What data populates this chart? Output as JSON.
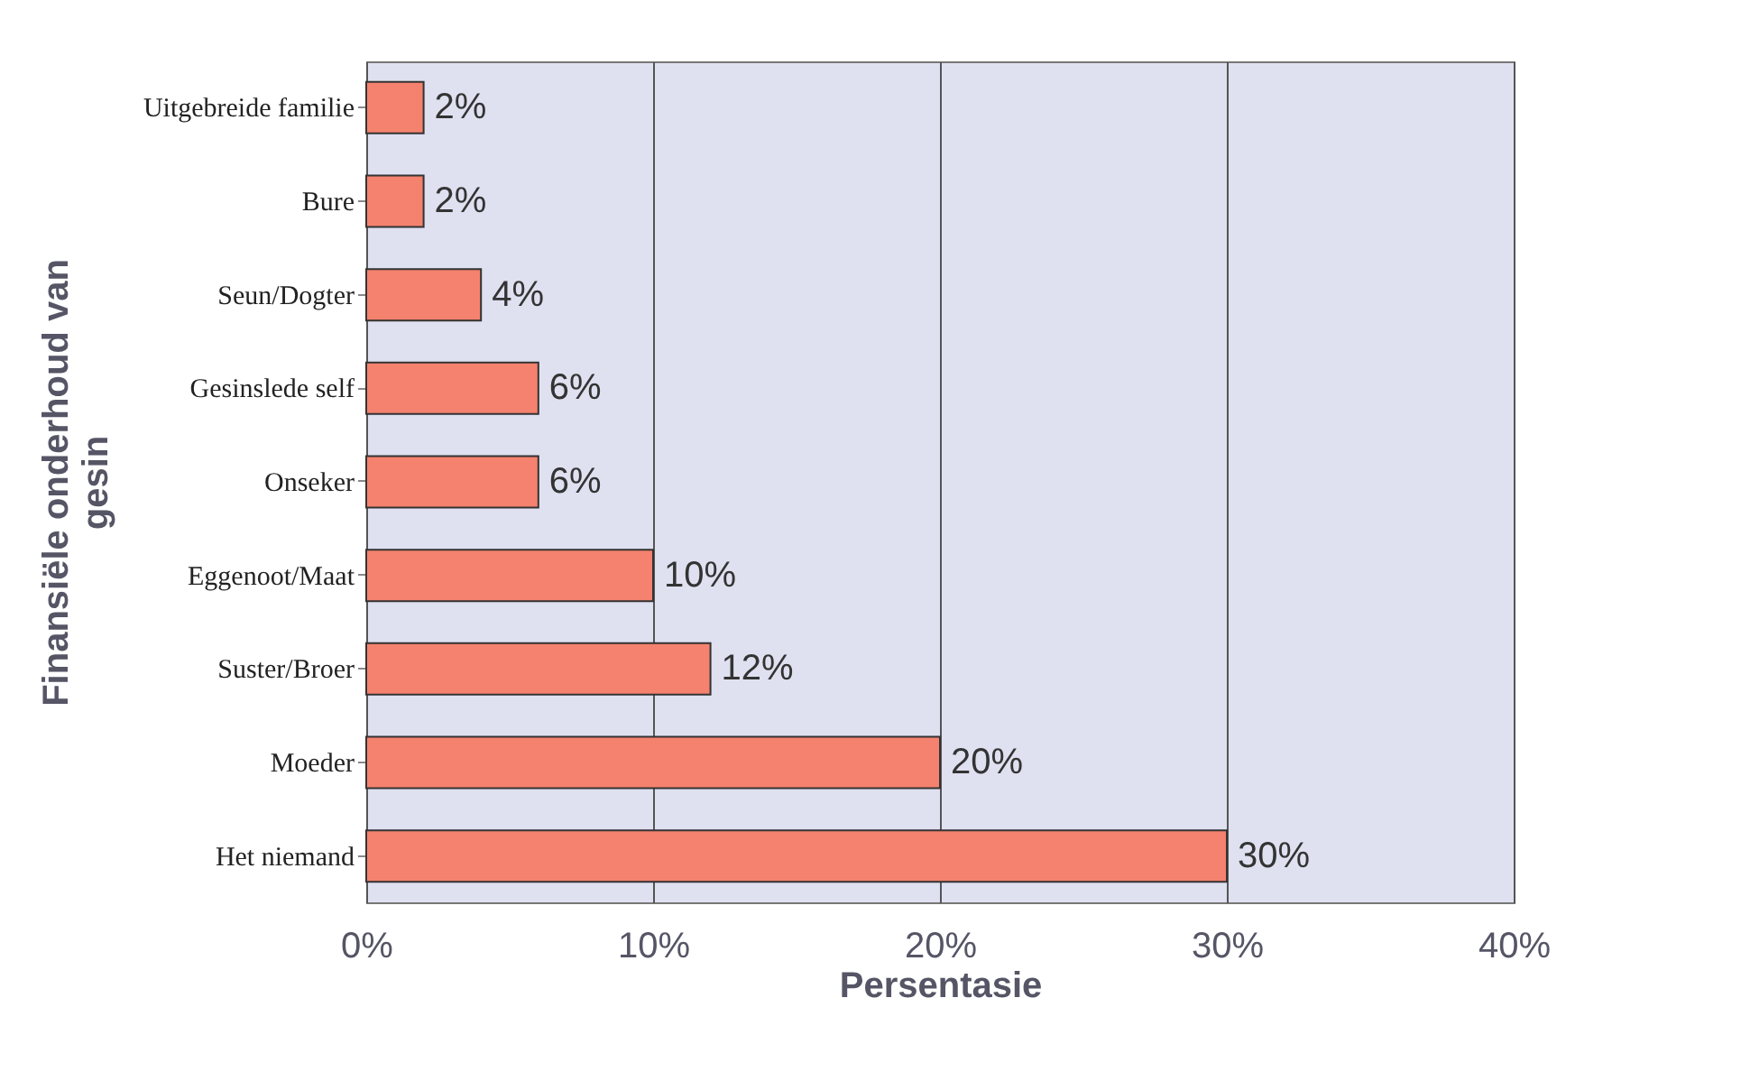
{
  "chart_data": {
    "type": "bar",
    "orientation": "horizontal",
    "categories": [
      "Uitgebreide familie",
      "Bure",
      "Seun/Dogter",
      "Gesinslede self",
      "Onseker",
      "Eggenoot/Maat",
      "Suster/Broer",
      "Moeder",
      "Het niemand"
    ],
    "values": [
      2,
      2,
      4,
      6,
      6,
      10,
      12,
      20,
      30
    ],
    "value_labels": [
      "2%",
      "2%",
      "4%",
      "6%",
      "6%",
      "10%",
      "12%",
      "20%",
      "30%"
    ],
    "color": "#f4826e",
    "xlim": [
      0,
      40
    ],
    "xticks": [
      {
        "value": 0,
        "label": "0%"
      },
      {
        "value": 10,
        "label": "10%"
      },
      {
        "value": 20,
        "label": "20%"
      },
      {
        "value": 30,
        "label": "30%"
      },
      {
        "value": 40,
        "label": "40%"
      }
    ],
    "xlabel": "Persentasie",
    "ylabel": "Finansiële onderhoud van gesin",
    "grid": "x"
  }
}
